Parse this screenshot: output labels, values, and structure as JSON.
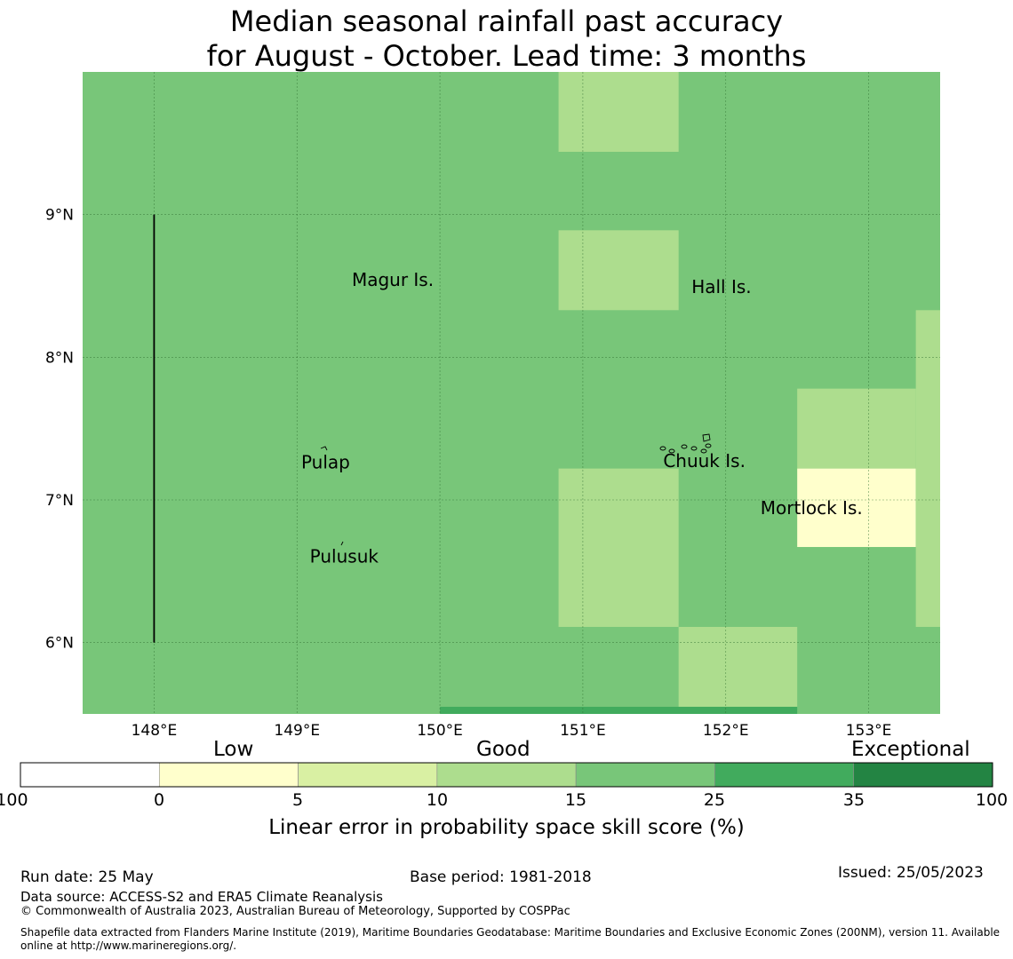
{
  "title": {
    "line1": "Median seasonal rainfall past accuracy",
    "line2": "for August - October. Lead time: 3 months"
  },
  "map": {
    "lon_range": [
      147.5,
      153.5
    ],
    "lat_range": [
      5.5,
      10.0
    ],
    "x_ticks": [
      {
        "lon": 148,
        "label": "148°E"
      },
      {
        "lon": 149,
        "label": "149°E"
      },
      {
        "lon": 150,
        "label": "150°E"
      },
      {
        "lon": 151,
        "label": "151°E"
      },
      {
        "lon": 152,
        "label": "152°E"
      },
      {
        "lon": 153,
        "label": "153°E"
      }
    ],
    "y_ticks": [
      {
        "lat": 9,
        "label": "9°N"
      },
      {
        "lat": 8,
        "label": "8°N"
      },
      {
        "lat": 7,
        "label": "7°N"
      },
      {
        "lat": 6,
        "label": "6°N"
      }
    ],
    "background_category": "15-25",
    "cells": [
      {
        "lon": [
          150.83,
          151.67
        ],
        "lat": [
          9.44,
          10.0
        ],
        "category": "10-15"
      },
      {
        "lon": [
          150.83,
          151.67
        ],
        "lat": [
          8.33,
          8.89
        ],
        "category": "10-15"
      },
      {
        "lon": [
          150.83,
          151.67
        ],
        "lat": [
          6.11,
          7.22
        ],
        "category": "10-15"
      },
      {
        "lon": [
          151.67,
          152.5
        ],
        "lat": [
          5.55,
          6.11
        ],
        "category": "10-15"
      },
      {
        "lon": [
          152.5,
          153.33
        ],
        "lat": [
          7.22,
          7.78
        ],
        "category": "10-15"
      },
      {
        "lon": [
          152.5,
          153.33
        ],
        "lat": [
          6.67,
          7.22
        ],
        "category": "0-5"
      },
      {
        "lon": [
          153.33,
          153.5
        ],
        "lat": [
          6.11,
          8.33
        ],
        "category": "10-15"
      },
      {
        "lon": [
          150.0,
          152.5
        ],
        "lat": [
          5.5,
          5.55
        ],
        "category": "25-35"
      }
    ],
    "places": [
      {
        "name": "Magur Is.",
        "lon": 149.67,
        "lat": 8.5
      },
      {
        "name": "Hall Is.",
        "lon": 151.97,
        "lat": 8.45
      },
      {
        "name": "Pulap",
        "lon": 149.2,
        "lat": 7.22
      },
      {
        "name": "Chuuk Is.",
        "lon": 151.85,
        "lat": 7.23
      },
      {
        "name": "Mortlock Is.",
        "lon": 152.6,
        "lat": 6.9
      },
      {
        "name": "Pulusuk",
        "lon": 149.33,
        "lat": 6.56
      }
    ],
    "boundary_line": {
      "lon": 148.0,
      "lat": [
        6.0,
        9.0
      ]
    }
  },
  "colorbar": {
    "categories": [
      {
        "key": "-100-0",
        "color": "#ffffff"
      },
      {
        "key": "0-5",
        "color": "#ffffcc"
      },
      {
        "key": "5-10",
        "color": "#d9f0a3"
      },
      {
        "key": "10-15",
        "color": "#addd8e"
      },
      {
        "key": "15-25",
        "color": "#78c679"
      },
      {
        "key": "25-35",
        "color": "#41ab5d"
      },
      {
        "key": "35-100",
        "color": "#238443"
      }
    ],
    "ticks": [
      "-100",
      "0",
      "5",
      "10",
      "15",
      "25",
      "35",
      "100"
    ],
    "group_labels": {
      "low": "Low",
      "good": "Good",
      "exceptional": "Exceptional"
    },
    "axis_label": "Linear error in probability space skill score (%)"
  },
  "footer": {
    "run_date": "Run date: 25 May",
    "base_period": "Base period: 1981-2018",
    "issued": "Issued: 25/05/2023",
    "data_source": "Data source: ACCESS-S2 and ERA5 Climate Reanalysis",
    "copyright": "© Commonwealth of Australia 2023, Australian Bureau of Meteorology, Supported by COSPPac",
    "shapefile_line1": "Shapefile data extracted from Flanders Marine Institute (2019), Maritime Boundaries Geodatabase: Maritime Boundaries and Exclusive Economic Zones (200NM), version 11. Available",
    "shapefile_line2": "online at http://www.marineregions.org/."
  }
}
